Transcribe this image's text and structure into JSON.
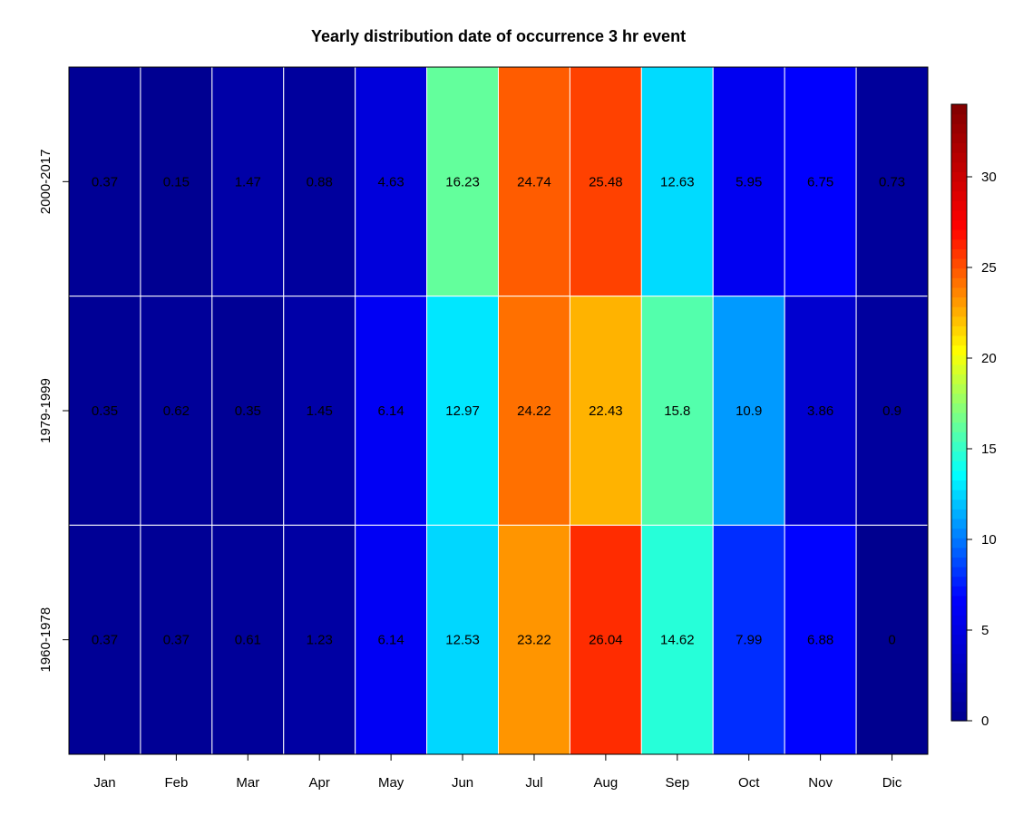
{
  "chart_data": {
    "type": "heatmap",
    "title": "Yearly distribution date of occurrence 3 hr event",
    "xlabel": "",
    "ylabel": "",
    "x_categories": [
      "Jan",
      "Feb",
      "Mar",
      "Apr",
      "May",
      "Jun",
      "Jul",
      "Aug",
      "Sep",
      "Oct",
      "Nov",
      "Dic"
    ],
    "y_categories": [
      "2000-2017",
      "1979-1999",
      "1960-1978"
    ],
    "values": [
      [
        0.37,
        0.15,
        1.47,
        0.88,
        4.63,
        16.23,
        24.74,
        25.48,
        12.63,
        5.95,
        6.75,
        0.73
      ],
      [
        0.35,
        0.62,
        0.35,
        1.45,
        6.14,
        12.97,
        24.22,
        22.43,
        15.8,
        10.9,
        3.86,
        0.9
      ],
      [
        0.37,
        0.37,
        0.61,
        1.23,
        6.14,
        12.53,
        23.22,
        26.04,
        14.62,
        7.99,
        6.88,
        0
      ]
    ],
    "colorbar": {
      "range": [
        0,
        34
      ],
      "ticks": [
        0,
        5,
        10,
        15,
        20,
        25,
        30
      ],
      "palette": "jet",
      "colors": [
        "#00008F",
        "#0000FF",
        "#00FFFF",
        "#FFFF00",
        "#FF0000",
        "#800000"
      ]
    },
    "grid": true,
    "legend": "right"
  }
}
